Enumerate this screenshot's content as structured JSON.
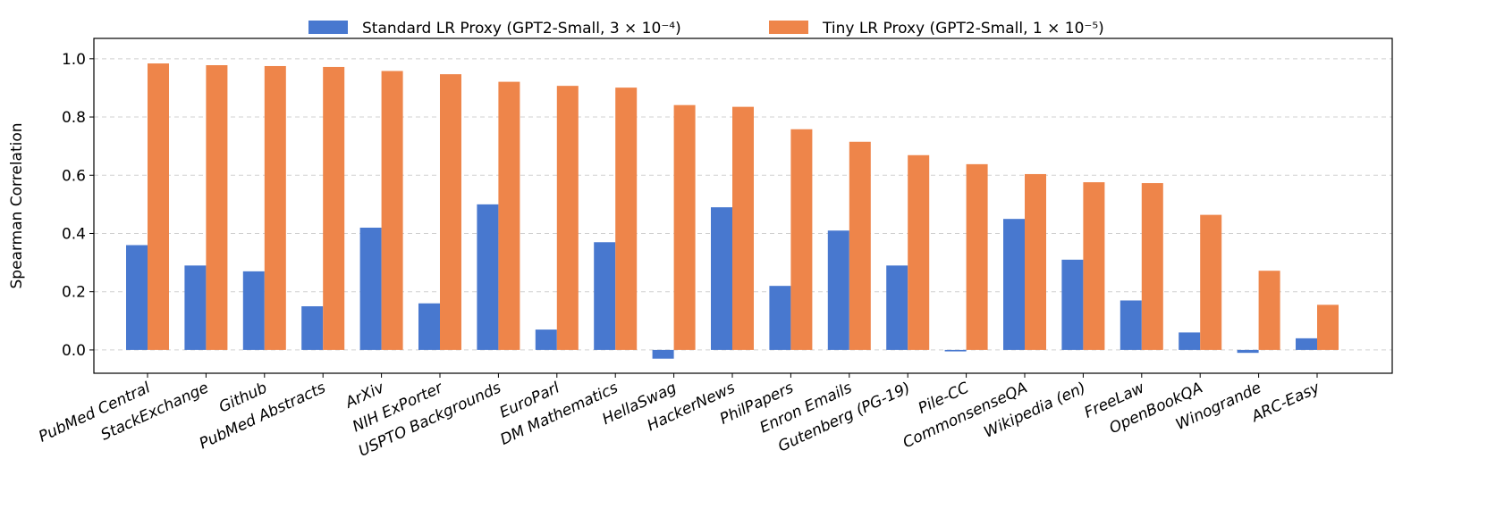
{
  "chart_data": {
    "type": "bar",
    "title": "",
    "xlabel": "",
    "ylabel": "Spearman Correlation",
    "ylim": [
      -0.08,
      1.07
    ],
    "yticks": [
      "0.0",
      "0.2",
      "0.4",
      "0.6",
      "0.8",
      "1.0"
    ],
    "grid": "horizontal dashed",
    "legend_position": "top-center",
    "categories": [
      "PubMed Central",
      "StackExchange",
      "Github",
      "PubMed Abstracts",
      "ArXiv",
      "NIH ExPorter",
      "USPTO Backgrounds",
      "EuroParl",
      "DM Mathematics",
      "HellaSwag",
      "HackerNews",
      "PhilPapers",
      "Enron Emails",
      "Gutenberg (PG-19)",
      "Pile-CC",
      "CommonsenseQA",
      "Wikipedia (en)",
      "FreeLaw",
      "OpenBookQA",
      "Winogrande",
      "ARC-Easy"
    ],
    "series": [
      {
        "name": "Standard LR Proxy (GPT2-Small, 3 × 10⁻⁴)",
        "color": "#4878cf",
        "values": [
          0.36,
          0.29,
          0.27,
          0.15,
          0.42,
          0.16,
          0.5,
          0.07,
          0.37,
          -0.03,
          0.49,
          0.22,
          0.41,
          0.29,
          -0.005,
          0.45,
          0.31,
          0.17,
          0.06,
          -0.01,
          0.04
        ]
      },
      {
        "name": "Tiny LR Proxy (GPT2-Small, 1 × 10⁻⁵)",
        "color": "#ee854a",
        "values": [
          0.984,
          0.978,
          0.975,
          0.972,
          0.958,
          0.947,
          0.921,
          0.907,
          0.901,
          0.841,
          0.835,
          0.758,
          0.715,
          0.669,
          0.638,
          0.604,
          0.576,
          0.573,
          0.464,
          0.272,
          0.155
        ]
      }
    ]
  }
}
